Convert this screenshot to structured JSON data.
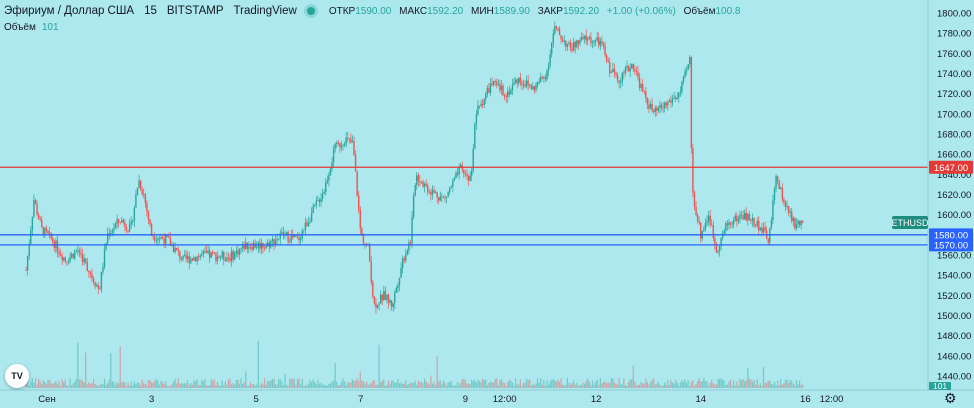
{
  "header": {
    "symbol": "Эфириум / Доллар США",
    "interval": "15",
    "exchange": "BITSTAMP",
    "source": "TradingView",
    "ohlc": [
      {
        "label": "ОТКР",
        "value": "1590.00"
      },
      {
        "label": "МАКС",
        "value": "1592.20"
      },
      {
        "label": "МИН",
        "value": "1589.90"
      },
      {
        "label": "ЗАКР",
        "value": "1592.20"
      },
      {
        "label": "",
        "value": "+1.00 (+0.06%)"
      },
      {
        "label": "Объём",
        "value": "100.8"
      }
    ]
  },
  "volume_legend": {
    "label": "Объём",
    "value": "101"
  },
  "logo_text": "TV",
  "settings_icon": "gear-icon",
  "colors": {
    "background": "#ade8ee",
    "up": "#26a69a",
    "down": "#ef5350",
    "red_line": "#e53935",
    "blue_line": "#2962ff",
    "symbol_tag": "#1e8c7e"
  },
  "chart_data": {
    "type": "candlestick",
    "symbol": "ETHUSD",
    "y_axis": {
      "ticks": [
        1440,
        1460,
        1480,
        1500,
        1520,
        1540,
        1560,
        1580,
        1600,
        1620,
        1640,
        1660,
        1680,
        1700,
        1720,
        1740,
        1760,
        1780,
        1800
      ],
      "tick_labels": [
        "1440.00",
        "1460.00",
        "1480.00",
        "1500.00",
        "1520.00",
        "1540.00",
        "1560.00",
        "1580.00",
        "1600.00",
        "1620.00",
        "1640.00",
        "1660.00",
        "1680.00",
        "1700.00",
        "1720.00",
        "1740.00",
        "1760.00",
        "1780.00",
        "1800.00"
      ],
      "range": [
        1433,
        1805
      ]
    },
    "x_axis": {
      "ticks": [
        {
          "label": "Сен",
          "t": 0.0
        },
        {
          "label": "3",
          "t": 2.0
        },
        {
          "label": "5",
          "t": 4.0
        },
        {
          "label": "7",
          "t": 6.0
        },
        {
          "label": "9",
          "t": 8.0
        },
        {
          "label": "12:00",
          "t": 8.75
        },
        {
          "label": "12",
          "t": 10.5
        },
        {
          "label": "14",
          "t": 12.5
        },
        {
          "label": "16",
          "t": 14.5
        },
        {
          "label": "12:00",
          "t": 15.0
        }
      ]
    },
    "price_path": [
      {
        "t": -0.4,
        "p": 1545
      },
      {
        "t": -0.25,
        "p": 1615
      },
      {
        "t": -0.1,
        "p": 1585
      },
      {
        "t": 0.1,
        "p": 1575
      },
      {
        "t": 0.35,
        "p": 1555
      },
      {
        "t": 0.6,
        "p": 1565
      },
      {
        "t": 0.85,
        "p": 1540
      },
      {
        "t": 1.0,
        "p": 1525
      },
      {
        "t": 1.15,
        "p": 1580
      },
      {
        "t": 1.4,
        "p": 1595
      },
      {
        "t": 1.6,
        "p": 1585
      },
      {
        "t": 1.75,
        "p": 1635
      },
      {
        "t": 1.85,
        "p": 1620
      },
      {
        "t": 2.0,
        "p": 1580
      },
      {
        "t": 2.3,
        "p": 1575
      },
      {
        "t": 2.6,
        "p": 1555
      },
      {
        "t": 3.0,
        "p": 1560
      },
      {
        "t": 3.5,
        "p": 1558
      },
      {
        "t": 3.8,
        "p": 1570
      },
      {
        "t": 4.2,
        "p": 1570
      },
      {
        "t": 4.5,
        "p": 1580
      },
      {
        "t": 4.8,
        "p": 1575
      },
      {
        "t": 5.0,
        "p": 1595
      },
      {
        "t": 5.3,
        "p": 1625
      },
      {
        "t": 5.5,
        "p": 1665
      },
      {
        "t": 5.7,
        "p": 1675
      },
      {
        "t": 5.85,
        "p": 1670
      },
      {
        "t": 6.0,
        "p": 1580
      },
      {
        "t": 6.15,
        "p": 1565
      },
      {
        "t": 6.25,
        "p": 1510
      },
      {
        "t": 6.45,
        "p": 1520
      },
      {
        "t": 6.6,
        "p": 1510
      },
      {
        "t": 6.8,
        "p": 1555
      },
      {
        "t": 6.95,
        "p": 1575
      },
      {
        "t": 7.05,
        "p": 1640
      },
      {
        "t": 7.3,
        "p": 1625
      },
      {
        "t": 7.6,
        "p": 1615
      },
      {
        "t": 7.9,
        "p": 1645
      },
      {
        "t": 8.1,
        "p": 1635
      },
      {
        "t": 8.2,
        "p": 1700
      },
      {
        "t": 8.5,
        "p": 1730
      },
      {
        "t": 8.8,
        "p": 1720
      },
      {
        "t": 9.0,
        "p": 1735
      },
      {
        "t": 9.3,
        "p": 1725
      },
      {
        "t": 9.55,
        "p": 1740
      },
      {
        "t": 9.7,
        "p": 1785
      },
      {
        "t": 10.0,
        "p": 1765
      },
      {
        "t": 10.3,
        "p": 1775
      },
      {
        "t": 10.6,
        "p": 1770
      },
      {
        "t": 10.75,
        "p": 1745
      },
      {
        "t": 10.95,
        "p": 1735
      },
      {
        "t": 11.2,
        "p": 1750
      },
      {
        "t": 11.4,
        "p": 1720
      },
      {
        "t": 11.6,
        "p": 1700
      },
      {
        "t": 11.85,
        "p": 1710
      },
      {
        "t": 12.1,
        "p": 1720
      },
      {
        "t": 12.3,
        "p": 1755
      },
      {
        "t": 12.33,
        "p": 1625
      },
      {
        "t": 12.5,
        "p": 1580
      },
      {
        "t": 12.65,
        "p": 1600
      },
      {
        "t": 12.8,
        "p": 1565
      },
      {
        "t": 13.0,
        "p": 1590
      },
      {
        "t": 13.3,
        "p": 1600
      },
      {
        "t": 13.6,
        "p": 1590
      },
      {
        "t": 13.8,
        "p": 1575
      },
      {
        "t": 13.95,
        "p": 1640
      },
      {
        "t": 14.1,
        "p": 1610
      },
      {
        "t": 14.3,
        "p": 1590
      },
      {
        "t": 14.45,
        "p": 1592
      }
    ],
    "horizontal_lines": [
      {
        "price": 1647,
        "label": "1647.00",
        "color": "#e53935"
      },
      {
        "price": 1580,
        "label": "1580.00",
        "color": "#2962ff"
      },
      {
        "price": 1570,
        "label": "1570.00",
        "color": "#2962ff"
      }
    ],
    "last_price": {
      "price": 1592.2,
      "tag": "ETHUSD"
    },
    "volume_axis_label": "101"
  }
}
